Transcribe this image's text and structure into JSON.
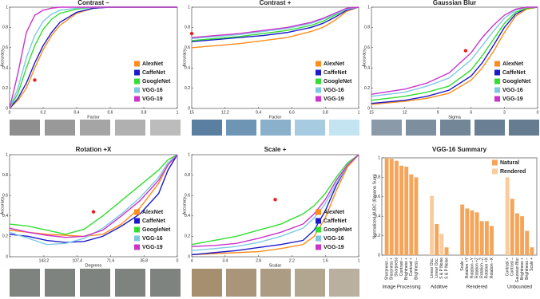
{
  "chart_data": [
    {
      "type": "line",
      "title": "Contrast –",
      "x_label": "Factor",
      "y_label": "Accuracy",
      "xlim": [
        0,
        1
      ],
      "xticks": [
        0,
        0.2,
        0.4,
        0.6,
        0.8,
        1
      ],
      "ylim": [
        0,
        1
      ],
      "yticks": [
        0,
        0.2,
        0.4,
        0.6,
        0.8,
        1
      ],
      "legend": "lower right",
      "x": [
        0,
        0.05,
        0.1,
        0.15,
        0.2,
        0.25,
        0.3,
        0.4,
        0.5,
        0.6,
        1
      ],
      "series": [
        {
          "name": "AlexNet",
          "color": "#ff8c1a",
          "values": [
            0,
            0.08,
            0.2,
            0.4,
            0.58,
            0.72,
            0.82,
            0.94,
            0.99,
            1,
            1
          ]
        },
        {
          "name": "CaffeNet",
          "color": "#1a1acc",
          "values": [
            0,
            0.1,
            0.25,
            0.45,
            0.62,
            0.75,
            0.85,
            0.95,
            0.99,
            1,
            1
          ]
        },
        {
          "name": "GoogleNet",
          "color": "#33dd33",
          "values": [
            0,
            0.15,
            0.4,
            0.62,
            0.78,
            0.88,
            0.94,
            0.98,
            1,
            1,
            1
          ]
        },
        {
          "name": "VGG-16",
          "color": "#7ec8e3",
          "values": [
            0,
            0.2,
            0.5,
            0.72,
            0.86,
            0.93,
            0.97,
            0.99,
            1,
            1,
            1
          ]
        },
        {
          "name": "VGG-19",
          "color": "#cc33cc",
          "values": [
            0,
            0.35,
            0.75,
            0.92,
            0.97,
            0.99,
            1,
            1,
            1,
            1,
            1
          ]
        }
      ],
      "marker": {
        "x": 0.15,
        "y": 0.28,
        "color": "#e82020"
      }
    },
    {
      "type": "line",
      "title": "Contrast +",
      "x_label": "Factor",
      "y_label": "Accuracy",
      "xlim": [
        15,
        1
      ],
      "xticks": [
        15,
        12.2,
        9.4,
        6.6,
        3.8,
        1
      ],
      "ylim": [
        0,
        1
      ],
      "yticks": [
        0,
        0.2,
        0.4,
        0.6,
        0.8,
        1
      ],
      "legend": "lower right",
      "x": [
        15,
        13,
        11,
        9,
        7,
        5,
        4,
        3,
        2,
        1
      ],
      "series": [
        {
          "name": "AlexNet",
          "color": "#ff8c1a",
          "values": [
            0.6,
            0.62,
            0.64,
            0.67,
            0.7,
            0.76,
            0.8,
            0.87,
            0.96,
            1
          ]
        },
        {
          "name": "CaffeNet",
          "color": "#1a1acc",
          "values": [
            0.66,
            0.68,
            0.7,
            0.72,
            0.75,
            0.8,
            0.84,
            0.9,
            0.97,
            1
          ]
        },
        {
          "name": "GoogleNet",
          "color": "#33dd33",
          "values": [
            0.67,
            0.69,
            0.71,
            0.74,
            0.77,
            0.82,
            0.86,
            0.92,
            0.98,
            1
          ]
        },
        {
          "name": "VGG-16",
          "color": "#7ec8e3",
          "values": [
            0.69,
            0.71,
            0.73,
            0.76,
            0.79,
            0.84,
            0.88,
            0.93,
            0.98,
            1
          ]
        },
        {
          "name": "VGG-19",
          "color": "#cc33cc",
          "values": [
            0.7,
            0.72,
            0.74,
            0.77,
            0.8,
            0.85,
            0.89,
            0.94,
            0.99,
            1
          ]
        }
      ],
      "marker": {
        "x": 15,
        "y": 0.74,
        "color": "#e82020"
      }
    },
    {
      "type": "line",
      "title": "Gaussian Blur",
      "x_label": "Sigma",
      "y_label": "Accuracy",
      "xlim": [
        15,
        0
      ],
      "xticks": [
        15,
        12,
        9,
        6,
        3,
        0
      ],
      "ylim": [
        0,
        1
      ],
      "yticks": [
        0,
        0.2,
        0.4,
        0.6,
        0.8,
        1
      ],
      "legend": "lower right",
      "x": [
        15,
        12,
        10,
        8,
        6,
        5,
        4,
        3,
        2,
        1,
        0
      ],
      "series": [
        {
          "name": "AlexNet",
          "color": "#ff8c1a",
          "values": [
            0.04,
            0.07,
            0.1,
            0.15,
            0.28,
            0.4,
            0.56,
            0.75,
            0.91,
            0.98,
            1
          ]
        },
        {
          "name": "CaffeNet",
          "color": "#1a1acc",
          "values": [
            0.05,
            0.08,
            0.12,
            0.18,
            0.32,
            0.45,
            0.62,
            0.8,
            0.93,
            0.99,
            1
          ]
        },
        {
          "name": "GoogleNet",
          "color": "#33dd33",
          "values": [
            0.08,
            0.12,
            0.16,
            0.22,
            0.38,
            0.52,
            0.68,
            0.84,
            0.95,
            0.99,
            1
          ]
        },
        {
          "name": "VGG-16",
          "color": "#7ec8e3",
          "values": [
            0.12,
            0.16,
            0.22,
            0.3,
            0.48,
            0.62,
            0.76,
            0.89,
            0.97,
            1,
            1
          ]
        },
        {
          "name": "VGG-19",
          "color": "#cc33cc",
          "values": [
            0.14,
            0.19,
            0.25,
            0.35,
            0.55,
            0.7,
            0.82,
            0.92,
            0.98,
            1,
            1
          ]
        }
      ],
      "marker": {
        "x": 6.5,
        "y": 0.57,
        "color": "#e82020"
      }
    },
    {
      "type": "line",
      "title": "Rotation +X",
      "x_label": "Degrees",
      "y_label": "Accuracy",
      "xlim": [
        180,
        0
      ],
      "xticks": [
        143.2,
        107.4,
        71.6,
        35.8,
        0
      ],
      "ylim": [
        0,
        1
      ],
      "yticks": [
        0,
        0.2,
        0.4,
        0.6,
        0.8,
        1
      ],
      "legend": "lower right",
      "x": [
        180,
        160,
        140,
        120,
        100,
        80,
        60,
        40,
        20,
        10,
        0
      ],
      "series": [
        {
          "name": "AlexNet",
          "color": "#ff8c1a",
          "values": [
            0.26,
            0.24,
            0.22,
            0.21,
            0.2,
            0.22,
            0.32,
            0.48,
            0.72,
            0.9,
            1
          ]
        },
        {
          "name": "CaffeNet",
          "color": "#1a1acc",
          "values": [
            0.22,
            0.2,
            0.16,
            0.14,
            0.15,
            0.2,
            0.3,
            0.42,
            0.62,
            0.85,
            1
          ]
        },
        {
          "name": "GoogleNet",
          "color": "#33dd33",
          "values": [
            0.32,
            0.3,
            0.26,
            0.22,
            0.27,
            0.4,
            0.55,
            0.7,
            0.85,
            0.95,
            1
          ]
        },
        {
          "name": "VGG-16",
          "color": "#7ec8e3",
          "values": [
            0.24,
            0.18,
            0.12,
            0.13,
            0.18,
            0.28,
            0.42,
            0.58,
            0.78,
            0.92,
            1
          ]
        },
        {
          "name": "VGG-19",
          "color": "#cc33cc",
          "values": [
            0.28,
            0.24,
            0.21,
            0.19,
            0.2,
            0.26,
            0.4,
            0.55,
            0.75,
            0.9,
            1
          ]
        }
      ],
      "marker": {
        "x": 90,
        "y": 0.44,
        "color": "#e82020"
      }
    },
    {
      "type": "line",
      "title": "Scale +",
      "x_label": "Scalar",
      "y_label": "Accuracy",
      "xlim": [
        4,
        1
      ],
      "xticks": [
        4,
        3.4,
        2.8,
        2.2,
        1.6,
        1
      ],
      "ylim": [
        0,
        1
      ],
      "yticks": [
        0,
        0.2,
        0.4,
        0.6,
        0.8,
        1
      ],
      "legend": "lower right",
      "x": [
        4,
        3.6,
        3.2,
        2.8,
        2.4,
        2,
        1.8,
        1.6,
        1.4,
        1.2,
        1
      ],
      "series": [
        {
          "name": "AlexNet",
          "color": "#ff8c1a",
          "values": [
            0.02,
            0.03,
            0.04,
            0.05,
            0.08,
            0.12,
            0.2,
            0.38,
            0.65,
            0.88,
            1
          ]
        },
        {
          "name": "CaffeNet",
          "color": "#1a1acc",
          "values": [
            0.02,
            0.04,
            0.06,
            0.09,
            0.12,
            0.16,
            0.26,
            0.45,
            0.7,
            0.9,
            1
          ]
        },
        {
          "name": "GoogleNet",
          "color": "#33dd33",
          "values": [
            0.12,
            0.16,
            0.2,
            0.26,
            0.32,
            0.42,
            0.5,
            0.62,
            0.78,
            0.92,
            1
          ]
        },
        {
          "name": "VGG-16",
          "color": "#7ec8e3",
          "values": [
            0.06,
            0.08,
            0.1,
            0.14,
            0.2,
            0.28,
            0.38,
            0.52,
            0.72,
            0.9,
            1
          ]
        },
        {
          "name": "VGG-19",
          "color": "#cc33cc",
          "values": [
            0.1,
            0.11,
            0.13,
            0.18,
            0.24,
            0.32,
            0.42,
            0.56,
            0.75,
            0.9,
            1
          ]
        }
      ],
      "marker": {
        "x": 2.5,
        "y": 0.56,
        "color": "#e82020"
      }
    },
    {
      "type": "bar",
      "title": "VGG-16 Summary",
      "y_label": "Normalized AUBC (Banana Sum)",
      "ylim": [
        0,
        1
      ],
      "yticks": [
        0,
        0.2,
        0.4,
        0.6,
        0.8,
        1
      ],
      "legend": "upper right",
      "legend_items": [
        {
          "name": "Natural",
          "color": "#f5a55a"
        },
        {
          "name": "Rendered",
          "color": "#f9cc9e"
        }
      ],
      "groups": [
        {
          "name": "Image Processing",
          "categories": [
            "Sharpness –",
            "Sharpness +",
            "Sharpness",
            "Contrast –",
            "Brightness +",
            "Contrast +",
            "Brightness –"
          ],
          "values": [
            1,
            0.99,
            0.97,
            0.92,
            0.91,
            0.83,
            0.8
          ],
          "colors": [
            "#f5a55a",
            "#f5a55a",
            "#f5a55a",
            "#f5a55a",
            "#f5a55a",
            "#f5a55a",
            "#f5a55a"
          ]
        },
        {
          "name": "Additive",
          "categories": [
            "Linear Occ.",
            "Linear Occ.",
            "S & P Noise",
            "S & P Noise"
          ],
          "values": [
            0.61,
            0.32,
            0.22,
            0.08
          ],
          "colors": [
            "#f9cc9e",
            "#f5a55a",
            "#f9cc9e",
            "#f5a55a"
          ]
        },
        {
          "name": "Rendered",
          "categories": [
            "Scale –",
            "Rotation +Y",
            "Rotation –Y",
            "Rotation +Z",
            "Rotation –Z",
            "Rotation +X",
            "Rotation –X"
          ],
          "values": [
            0.52,
            0.48,
            0.46,
            0.44,
            0.35,
            0.35,
            0.3
          ],
          "colors": [
            "#f5a55a",
            "#f5a55a",
            "#f5a55a",
            "#f5a55a",
            "#f5a55a",
            "#f5a55a",
            "#f5a55a"
          ]
        },
        {
          "name": "Unbounded",
          "categories": [
            "Contrast +",
            "Contrast –",
            "Gaussian Blur",
            "Brightness +",
            "Brightness –",
            "Scale +"
          ],
          "values": [
            0.8,
            0.58,
            0.43,
            0.4,
            0.25,
            0.08
          ],
          "colors": [
            "#f9cc9e",
            "#f5a55a",
            "#f5a55a",
            "#f5a55a",
            "#f5a55a",
            "#f5a55a"
          ]
        }
      ]
    }
  ]
}
